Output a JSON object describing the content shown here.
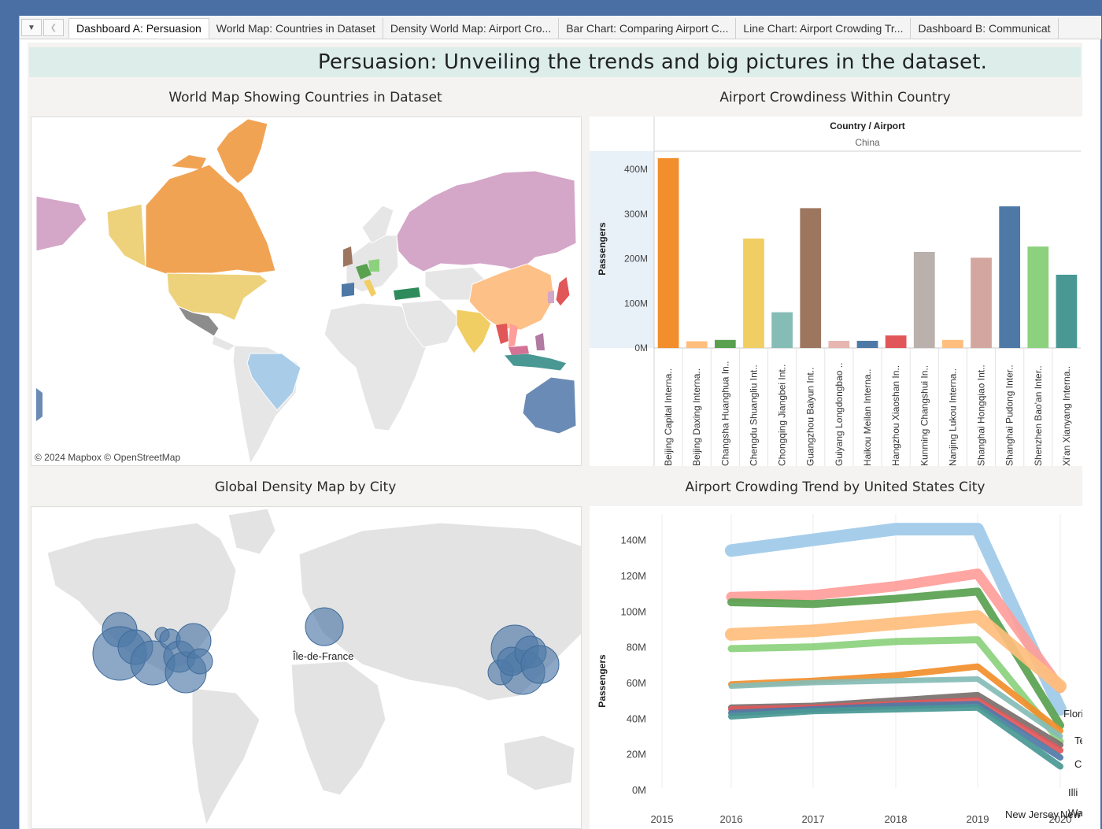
{
  "tabs": [
    {
      "label": "Dashboard A: Persuasion",
      "active": true
    },
    {
      "label": "World Map: Countries in Dataset",
      "active": false
    },
    {
      "label": "Density World Map: Airport Cro...",
      "active": false
    },
    {
      "label": "Bar Chart: Comparing Airport C...",
      "active": false
    },
    {
      "label": "Line Chart: Airport Crowding Tr...",
      "active": false
    },
    {
      "label": "Dashboard B: Communicat",
      "active": false
    }
  ],
  "controls": {
    "menu_icon": "dropdown-icon",
    "prev_icon": "chevron-left-icon"
  },
  "dashboard": {
    "title": "Persuasion: Unveiling the trends and big pictures in the dataset."
  },
  "world_map": {
    "title": "World Map Showing Countries in Dataset",
    "attribution": "© 2024 Mapbox  © OpenStreetMap"
  },
  "density_map": {
    "title": "Global Density Map by City",
    "label": "Île-de-France"
  },
  "chart_data": [
    {
      "type": "bar",
      "title": "Airport Crowdiness Within Country",
      "header_label": "Country / Airport",
      "header_value": "China",
      "ylabel": "Passengers",
      "ylim": [
        0,
        430
      ],
      "yticks": [
        "0M",
        "100M",
        "200M",
        "300M",
        "400M"
      ],
      "categories": [
        "Beijing Capital Interna..",
        "Beijing Daxing Interna..",
        "Changsha Huanghua In..",
        "Chengdu Shuangliu Int..",
        "Chongqing Jiangbei Int..",
        "Guangzhou Baiyun Int..",
        "Guiyang Longdongbao ..",
        "Haikou Meilan Interna..",
        "Hangzhou Xiaoshan In..",
        "Kunming Changshui In..",
        "Nanjing Lukou Interna..",
        "Shanghai Hongqiao Int..",
        "Shanghai Pudong Inter..",
        "Shenzhen Bao'an Inter..",
        "Xi'an Xianyang Interna.."
      ],
      "values": [
        425,
        15,
        18,
        245,
        80,
        313,
        16,
        16,
        28,
        215,
        18,
        202,
        317,
        227,
        164
      ],
      "colors": [
        "#f28e2b",
        "#ffbe7d",
        "#59a14f",
        "#f1ce63",
        "#86bcb6",
        "#9d7660",
        "#e8b6b0",
        "#4e79a7",
        "#e15759",
        "#bab0ac",
        "#ffbe7d",
        "#d4a6a0",
        "#4e79a7",
        "#8cd17d",
        "#499894"
      ]
    },
    {
      "type": "line",
      "title": "Airport Crowding Trend by United States City",
      "ylabel": "Passengers",
      "ylim": [
        0,
        150
      ],
      "yticks": [
        "0M",
        "20M",
        "40M",
        "60M",
        "80M",
        "100M",
        "120M",
        "140M"
      ],
      "x": [
        2016,
        2017,
        2018,
        2019,
        2020
      ],
      "xticks": [
        "2015",
        "2016",
        "2017",
        "2018",
        "2019",
        "2020"
      ],
      "series": [
        {
          "name": "Flori",
          "color": "#9ecae9",
          "width": 16,
          "values": [
            134,
            140,
            146,
            146,
            45
          ]
        },
        {
          "name": "Te",
          "color": "#ff9d9a",
          "width": 13,
          "values": [
            108,
            109,
            114,
            121,
            57
          ]
        },
        {
          "name": "",
          "color": "#59a14f",
          "width": 10,
          "values": [
            105,
            104,
            107,
            111,
            36
          ]
        },
        {
          "name": "Ca",
          "color": "#ffbe7d",
          "width": 16,
          "values": [
            87,
            89,
            93,
            97,
            58
          ]
        },
        {
          "name": "Illi",
          "color": "#8cd17d",
          "width": 9,
          "values": [
            79,
            80,
            83,
            84,
            27
          ]
        },
        {
          "name": "",
          "color": "#f28e2b",
          "width": 8,
          "values": [
            59,
            61,
            64,
            69,
            33
          ]
        },
        {
          "name": "",
          "color": "#86bcb6",
          "width": 7,
          "values": [
            58,
            60,
            61,
            62,
            30
          ]
        },
        {
          "name": "",
          "color": "#79706e",
          "width": 8,
          "values": [
            46,
            47,
            50,
            53,
            25
          ]
        },
        {
          "name": "Wa",
          "color": "#e15759",
          "width": 8,
          "values": [
            45,
            46,
            48,
            50,
            22
          ]
        },
        {
          "name": "",
          "color": "#4e79a7",
          "width": 8,
          "values": [
            43,
            45,
            47,
            48,
            18
          ]
        },
        {
          "name": "",
          "color": "#499894",
          "width": 8,
          "values": [
            41,
            44,
            45,
            46,
            13
          ]
        }
      ],
      "end_labels": [
        "New Jersey",
        "New"
      ]
    }
  ]
}
